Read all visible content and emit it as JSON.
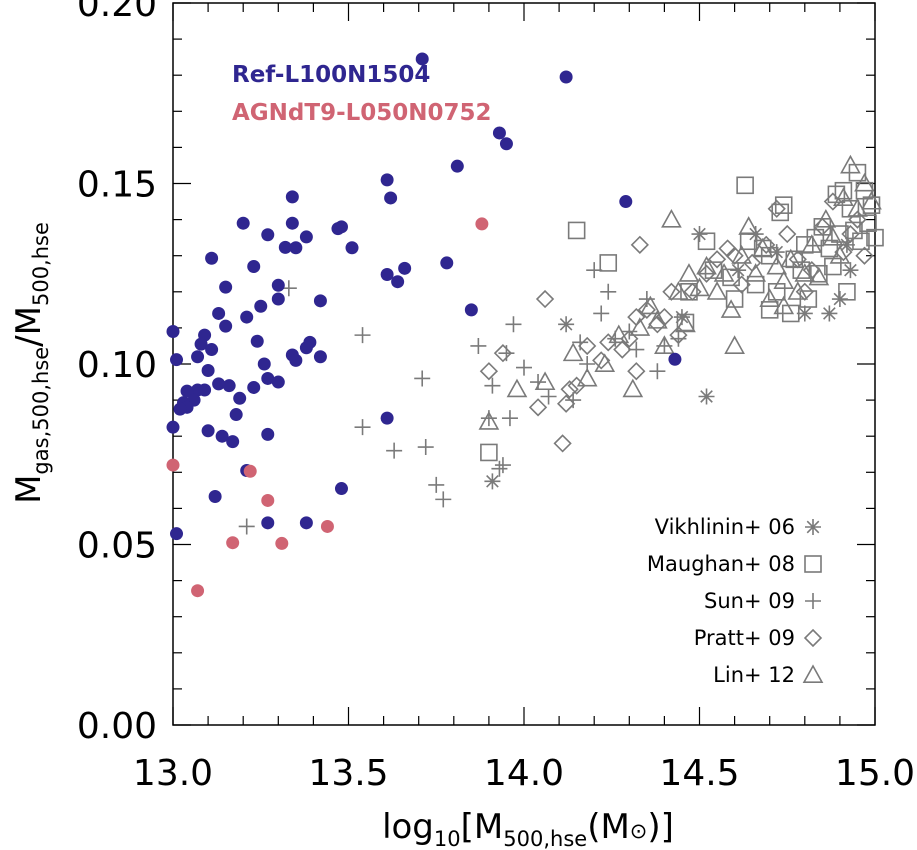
{
  "chart_data": {
    "type": "scatter",
    "xlabel": {
      "base": "log",
      "sub1": "10",
      "mid": "[M",
      "sub2": "500,hse",
      "end": "(M",
      "sym": "⊙",
      "close": ")]"
    },
    "ylabel": {
      "m1": "M",
      "sub1": "gas,500,hse",
      "slash": "/M",
      "sub2": "500,hse"
    },
    "xlim": [
      13.0,
      15.0
    ],
    "ylim": [
      0.0,
      0.2
    ],
    "x_ticks": [
      "13.0",
      "13.5",
      "14.0",
      "14.5",
      "15.0"
    ],
    "y_ticks": [
      "0.00",
      "0.05",
      "0.10",
      "0.15",
      "0.20"
    ],
    "grid": false,
    "colors": {
      "ref": "#2f2690",
      "agn": "#d06473",
      "obs": "#7a7a7a"
    },
    "simulation_series": [
      {
        "name": "Ref-L100N1504",
        "marker": "filled-circle",
        "color": "#2f2690",
        "points": [
          [
            13.71,
            0.1845
          ],
          [
            14.12,
            0.1795
          ],
          [
            13.93,
            0.164
          ],
          [
            13.95,
            0.161
          ],
          [
            13.81,
            0.1548
          ],
          [
            13.61,
            0.151
          ],
          [
            13.62,
            0.146
          ],
          [
            13.34,
            0.1463
          ],
          [
            14.29,
            0.145
          ],
          [
            13.2,
            0.139
          ],
          [
            13.34,
            0.139
          ],
          [
            13.48,
            0.138
          ],
          [
            13.47,
            0.1375
          ],
          [
            13.27,
            0.1358
          ],
          [
            13.38,
            0.1352
          ],
          [
            13.32,
            0.1323
          ],
          [
            13.35,
            0.1322
          ],
          [
            13.51,
            0.1322
          ],
          [
            13.11,
            0.1293
          ],
          [
            13.78,
            0.128
          ],
          [
            13.23,
            0.127
          ],
          [
            13.66,
            0.1265
          ],
          [
            13.61,
            0.1248
          ],
          [
            13.64,
            0.1228
          ],
          [
            13.3,
            0.1218
          ],
          [
            13.15,
            0.1213
          ],
          [
            13.3,
            0.118
          ],
          [
            13.42,
            0.1175
          ],
          [
            13.25,
            0.116
          ],
          [
            13.85,
            0.115
          ],
          [
            13.13,
            0.114
          ],
          [
            13.21,
            0.113
          ],
          [
            13.15,
            0.1105
          ],
          [
            13.09,
            0.108
          ],
          [
            13.24,
            0.1063
          ],
          [
            13.0,
            0.109
          ],
          [
            13.08,
            0.1055
          ],
          [
            13.39,
            0.106
          ],
          [
            13.38,
            0.1045
          ],
          [
            13.11,
            0.104
          ],
          [
            13.34,
            0.1025
          ],
          [
            13.07,
            0.102
          ],
          [
            13.42,
            0.102
          ],
          [
            13.35,
            0.101
          ],
          [
            13.01,
            0.1012
          ],
          [
            13.26,
            0.1
          ],
          [
            13.1,
            0.0982
          ],
          [
            14.43,
            0.1013
          ],
          [
            13.27,
            0.096
          ],
          [
            13.3,
            0.095
          ],
          [
            13.13,
            0.0945
          ],
          [
            13.16,
            0.094
          ],
          [
            13.23,
            0.0935
          ],
          [
            13.07,
            0.0928
          ],
          [
            13.09,
            0.0928
          ],
          [
            13.04,
            0.0925
          ],
          [
            13.19,
            0.0905
          ],
          [
            13.06,
            0.09
          ],
          [
            13.03,
            0.0893
          ],
          [
            13.04,
            0.088
          ],
          [
            13.02,
            0.0875
          ],
          [
            13.18,
            0.086
          ],
          [
            13.61,
            0.085
          ],
          [
            13.0,
            0.0825
          ],
          [
            13.1,
            0.0815
          ],
          [
            13.27,
            0.0805
          ],
          [
            13.14,
            0.08
          ],
          [
            13.17,
            0.0785
          ],
          [
            13.21,
            0.0705
          ],
          [
            13.48,
            0.0655
          ],
          [
            13.12,
            0.0633
          ],
          [
            13.27,
            0.056
          ],
          [
            13.38,
            0.056
          ],
          [
            13.01,
            0.053
          ]
        ]
      },
      {
        "name": "AGNdT9-L050N0752",
        "marker": "filled-circle",
        "color": "#d06473",
        "points": [
          [
            13.88,
            0.1388
          ],
          [
            13.0,
            0.072
          ],
          [
            13.22,
            0.0703
          ],
          [
            13.27,
            0.0622
          ],
          [
            13.44,
            0.055
          ],
          [
            13.17,
            0.0505
          ],
          [
            13.31,
            0.0503
          ],
          [
            13.07,
            0.0372
          ]
        ]
      }
    ],
    "observation_series": [
      {
        "name": "Vikhlinin+ 06",
        "marker": "asterisk",
        "points": [
          [
            14.12,
            0.111
          ],
          [
            14.45,
            0.113
          ],
          [
            14.5,
            0.136
          ],
          [
            14.52,
            0.091
          ],
          [
            14.61,
            0.126
          ],
          [
            14.66,
            0.136
          ],
          [
            14.72,
            0.131
          ],
          [
            14.8,
            0.114
          ],
          [
            14.87,
            0.114
          ],
          [
            14.9,
            0.118
          ],
          [
            14.92,
            0.133
          ],
          [
            14.93,
            0.126
          ],
          [
            13.91,
            0.0675
          ]
        ]
      },
      {
        "name": "Maughan+ 08",
        "marker": "square",
        "points": [
          [
            14.15,
            0.137
          ],
          [
            14.24,
            0.128
          ],
          [
            14.47,
            0.12
          ],
          [
            14.52,
            0.134
          ],
          [
            14.54,
            0.126
          ],
          [
            14.59,
            0.124
          ],
          [
            14.63,
            0.1495
          ],
          [
            14.64,
            0.134
          ],
          [
            14.66,
            0.122
          ],
          [
            14.68,
            0.132
          ],
          [
            14.7,
            0.13
          ],
          [
            14.72,
            0.12
          ],
          [
            14.73,
            0.142
          ],
          [
            14.74,
            0.144
          ],
          [
            14.76,
            0.114
          ],
          [
            14.77,
            0.129
          ],
          [
            14.79,
            0.126
          ],
          [
            14.8,
            0.133
          ],
          [
            14.81,
            0.118
          ],
          [
            14.83,
            0.135
          ],
          [
            14.84,
            0.125
          ],
          [
            14.85,
            0.138
          ],
          [
            14.87,
            0.132
          ],
          [
            14.88,
            0.127
          ],
          [
            14.89,
            0.147
          ],
          [
            14.9,
            0.136
          ],
          [
            14.91,
            0.148
          ],
          [
            14.92,
            0.12
          ],
          [
            14.93,
            0.143
          ],
          [
            14.94,
            0.137
          ],
          [
            14.95,
            0.153
          ],
          [
            14.96,
            0.134
          ],
          [
            14.97,
            0.148
          ],
          [
            14.98,
            0.139
          ],
          [
            14.99,
            0.144
          ],
          [
            15.0,
            0.135
          ],
          [
            13.9,
            0.0755
          ],
          [
            14.46,
            0.1115
          ],
          [
            14.6,
            0.118
          ],
          [
            14.7,
            0.115
          ]
        ]
      },
      {
        "name": "Sun+ 09",
        "marker": "plus",
        "points": [
          [
            13.21,
            0.055
          ],
          [
            13.33,
            0.121
          ],
          [
            13.54,
            0.108
          ],
          [
            13.54,
            0.0825
          ],
          [
            13.63,
            0.076
          ],
          [
            13.71,
            0.096
          ],
          [
            13.72,
            0.077
          ],
          [
            13.75,
            0.0665
          ],
          [
            13.77,
            0.0625
          ],
          [
            13.87,
            0.105
          ],
          [
            13.9,
            0.085
          ],
          [
            13.91,
            0.094
          ],
          [
            13.93,
            0.071
          ],
          [
            13.94,
            0.072
          ],
          [
            13.95,
            0.103
          ],
          [
            13.96,
            0.085
          ],
          [
            13.97,
            0.111
          ],
          [
            14.0,
            0.099
          ],
          [
            14.04,
            0.095
          ],
          [
            14.07,
            0.091
          ],
          [
            14.14,
            0.09
          ],
          [
            14.16,
            0.106
          ],
          [
            14.18,
            0.1
          ],
          [
            14.2,
            0.126
          ],
          [
            14.22,
            0.114
          ],
          [
            14.24,
            0.12
          ],
          [
            14.26,
            0.107
          ],
          [
            14.3,
            0.109
          ],
          [
            14.32,
            0.104
          ],
          [
            14.35,
            0.118
          ],
          [
            14.38,
            0.098
          ],
          [
            14.4,
            0.105
          ],
          [
            14.44,
            0.107
          ]
        ]
      },
      {
        "name": "Pratt+ 09",
        "marker": "diamond",
        "points": [
          [
            13.9,
            0.098
          ],
          [
            13.94,
            0.103
          ],
          [
            14.04,
            0.088
          ],
          [
            14.06,
            0.118
          ],
          [
            14.11,
            0.078
          ],
          [
            14.12,
            0.089
          ],
          [
            14.13,
            0.093
          ],
          [
            14.15,
            0.094
          ],
          [
            14.18,
            0.105
          ],
          [
            14.22,
            0.101
          ],
          [
            14.24,
            0.106
          ],
          [
            14.28,
            0.104
          ],
          [
            14.3,
            0.107
          ],
          [
            14.32,
            0.113
          ],
          [
            14.33,
            0.133
          ],
          [
            14.35,
            0.115
          ],
          [
            14.38,
            0.111
          ],
          [
            14.4,
            0.113
          ],
          [
            14.42,
            0.12
          ],
          [
            14.44,
            0.108
          ],
          [
            14.48,
            0.12
          ],
          [
            14.52,
            0.125
          ],
          [
            14.55,
            0.129
          ],
          [
            14.58,
            0.132
          ],
          [
            14.6,
            0.13
          ],
          [
            14.62,
            0.122
          ],
          [
            14.65,
            0.128
          ],
          [
            14.69,
            0.133
          ],
          [
            14.72,
            0.143
          ],
          [
            14.75,
            0.136
          ],
          [
            14.78,
            0.129
          ],
          [
            14.8,
            0.12
          ],
          [
            14.82,
            0.126
          ],
          [
            14.85,
            0.138
          ],
          [
            14.88,
            0.145
          ],
          [
            14.91,
            0.131
          ],
          [
            14.93,
            0.136
          ],
          [
            14.95,
            0.14
          ],
          [
            14.97,
            0.13
          ],
          [
            14.32,
            0.098
          ]
        ]
      },
      {
        "name": "Lin+ 12",
        "marker": "triangle",
        "points": [
          [
            13.9,
            0.084
          ],
          [
            13.98,
            0.093
          ],
          [
            14.06,
            0.095
          ],
          [
            14.14,
            0.103
          ],
          [
            14.18,
            0.096
          ],
          [
            14.23,
            0.1
          ],
          [
            14.27,
            0.108
          ],
          [
            14.31,
            0.093
          ],
          [
            14.33,
            0.11
          ],
          [
            14.36,
            0.116
          ],
          [
            14.38,
            0.112
          ],
          [
            14.4,
            0.105
          ],
          [
            14.42,
            0.14
          ],
          [
            14.44,
            0.12
          ],
          [
            14.46,
            0.111
          ],
          [
            14.47,
            0.125
          ],
          [
            14.5,
            0.121
          ],
          [
            14.52,
            0.127
          ],
          [
            14.55,
            0.12
          ],
          [
            14.57,
            0.125
          ],
          [
            14.59,
            0.115
          ],
          [
            14.62,
            0.13
          ],
          [
            14.64,
            0.138
          ],
          [
            14.66,
            0.125
          ],
          [
            14.68,
            0.132
          ],
          [
            14.7,
            0.118
          ],
          [
            14.72,
            0.127
          ],
          [
            14.74,
            0.123
          ],
          [
            14.76,
            0.129
          ],
          [
            14.78,
            0.12
          ],
          [
            14.8,
            0.125
          ],
          [
            14.82,
            0.133
          ],
          [
            14.84,
            0.124
          ],
          [
            14.86,
            0.14
          ],
          [
            14.88,
            0.135
          ],
          [
            14.9,
            0.13
          ],
          [
            14.91,
            0.146
          ],
          [
            14.93,
            0.155
          ],
          [
            14.95,
            0.143
          ],
          [
            14.97,
            0.15
          ],
          [
            14.99,
            0.145
          ],
          [
            14.6,
            0.105
          ],
          [
            14.74,
            0.116
          ]
        ]
      }
    ]
  }
}
